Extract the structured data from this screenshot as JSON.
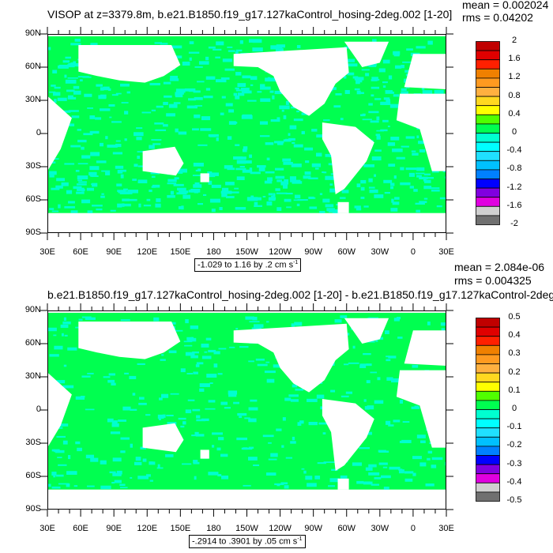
{
  "chart_data": [
    {
      "type": "heatmap",
      "title": "VISOP at z=3379.8m, b.e21.B1850.f19_g17.127kaControl_hosing-2deg.002 [1-20]",
      "mean_label": "mean = 0.002024",
      "rms_label": "rms = 0.04202",
      "info_label": "-1.029 to 1.16 by .2 cm s",
      "info_unit_exp": "-1",
      "y_ticks": [
        "90N",
        "60N",
        "30N",
        "0",
        "30S",
        "60S",
        "90S"
      ],
      "x_ticks": [
        "30E",
        "60E",
        "90E",
        "120E",
        "150E",
        "180",
        "150W",
        "120W",
        "90W",
        "60W",
        "30W",
        "0",
        "30E"
      ],
      "colorbar_labels": [
        "2",
        "1.6",
        "1.2",
        "0.8",
        "0.4",
        "0",
        "-0.4",
        "-0.8",
        "-1.2",
        "-1.6",
        "-2"
      ],
      "colorbar_range": [
        -2,
        2
      ],
      "colorbar_step": 0.2
    },
    {
      "type": "heatmap",
      "title": "b.e21.B1850.f19_g17.127kaControl_hosing-2deg.002 [1-20] - b.e21.B1850.f19_g17.127kaControl-2deg.",
      "mean_label": "mean = 2.084e-06",
      "rms_label": "rms = 0.004325",
      "info_label": "-.2914 to .3901 by .05 cm s",
      "info_unit_exp": "-1",
      "y_ticks": [
        "90N",
        "60N",
        "30N",
        "0",
        "30S",
        "60S",
        "90S"
      ],
      "x_ticks": [
        "30E",
        "60E",
        "90E",
        "120E",
        "150E",
        "180",
        "150W",
        "120W",
        "90W",
        "60W",
        "30W",
        "0",
        "30E"
      ],
      "colorbar_labels": [
        "0.5",
        "0.4",
        "0.3",
        "0.2",
        "0.1",
        "0",
        "-0.1",
        "-0.2",
        "-0.3",
        "-0.4",
        "-0.5"
      ],
      "colorbar_range": [
        -0.5,
        0.5
      ],
      "colorbar_step": 0.05
    }
  ],
  "colors": {
    "ocean_main": "#00ff50",
    "ocean_secondary": "#00ffd0",
    "land": "#ffffff",
    "colorbar": [
      "#c00000",
      "#e00000",
      "#ff2000",
      "#f08000",
      "#ff9a20",
      "#ffb040",
      "#ffd820",
      "#ffff00",
      "#50ff00",
      "#00ff50",
      "#00ffd0",
      "#00ffff",
      "#20e0ff",
      "#00c0ff",
      "#0080ff",
      "#0000ff",
      "#8000e0",
      "#e000e0",
      "#d0d0d0",
      "#707070"
    ]
  }
}
